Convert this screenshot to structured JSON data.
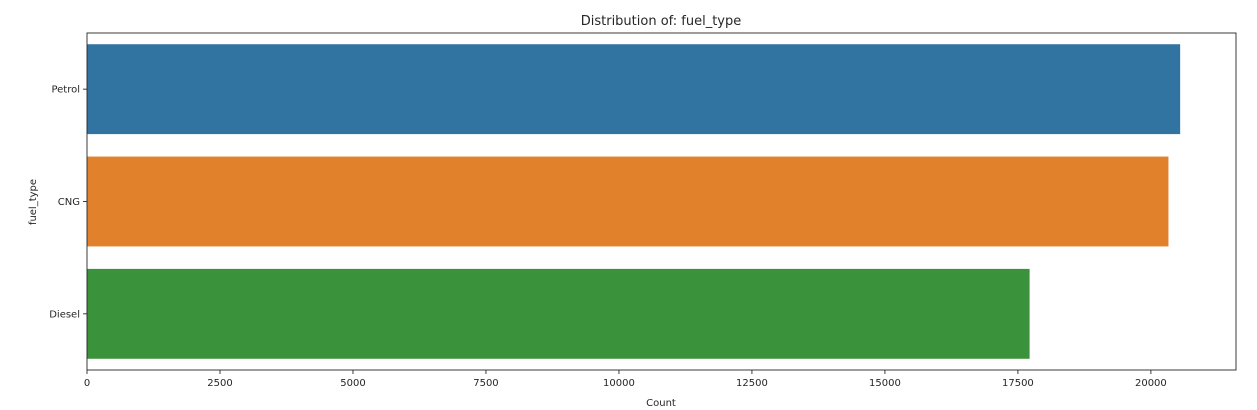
{
  "chart_data": {
    "type": "bar",
    "orientation": "horizontal",
    "title": "Distribution of: fuel_type",
    "xlabel": "Count",
    "ylabel": "fuel_type",
    "categories": [
      "Petrol",
      "CNG",
      "Diesel"
    ],
    "values": [
      20550,
      20330,
      17720
    ],
    "colors": [
      "#3274a1",
      "#e1812c",
      "#3a923a"
    ],
    "xlim": [
      0,
      21600
    ],
    "xticks": [
      0,
      2500,
      5000,
      7500,
      10000,
      12500,
      15000,
      17500,
      20000
    ],
    "xtick_labels": [
      "0",
      "2500",
      "5000",
      "7500",
      "10000",
      "12500",
      "15000",
      "17500",
      "20000"
    ],
    "grid": false,
    "legend": "none"
  }
}
